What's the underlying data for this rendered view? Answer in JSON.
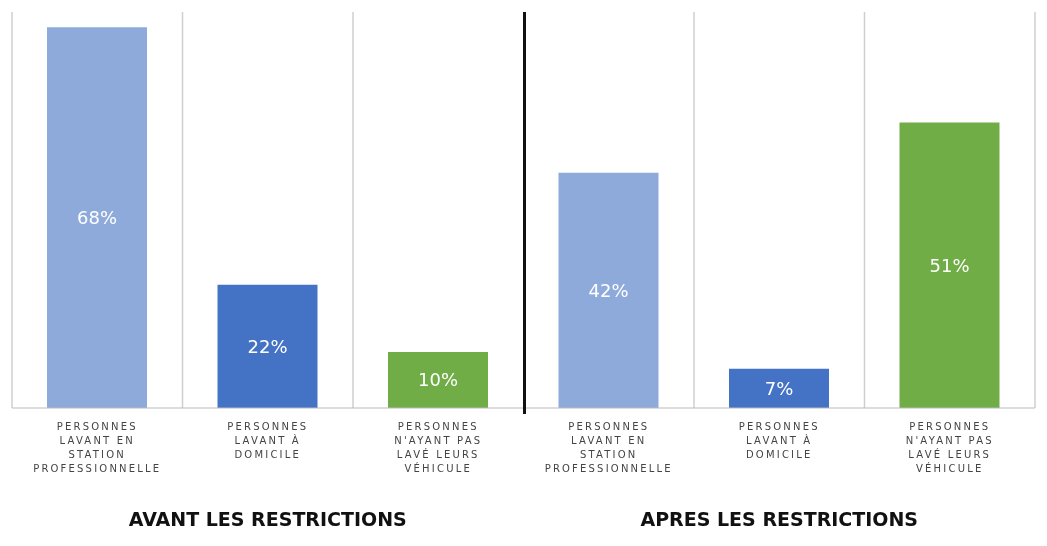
{
  "chart_data": {
    "type": "bar",
    "categories": [
      "PERSONNES LAVANT EN STATION PROFESSIONNELLE",
      "PERSONNES LAVANT À DOMICILE",
      "PERSONNES N'AYANT PAS LAVÉ LEURS VÉHICULE",
      "PERSONNES LAVANT EN STATION PROFESSIONNELLE",
      "PERSONNES LAVANT À DOMICILE",
      "PERSONNES N'AYANT PAS LAVÉ LEURS VÉHICULE"
    ],
    "values": [
      68,
      22,
      10,
      42,
      7,
      51
    ],
    "colors": [
      "#8eaadb",
      "#4472c4",
      "#70ad47",
      "#8eaadb",
      "#4472c4",
      "#70ad47"
    ],
    "value_labels": [
      "68%",
      "22%",
      "10%",
      "42%",
      "7%",
      "51%"
    ],
    "grid": "x",
    "annotations": [
      "AVANT LES RESTRICTIONS",
      "APRES LES RESTRICTIONS"
    ]
  }
}
